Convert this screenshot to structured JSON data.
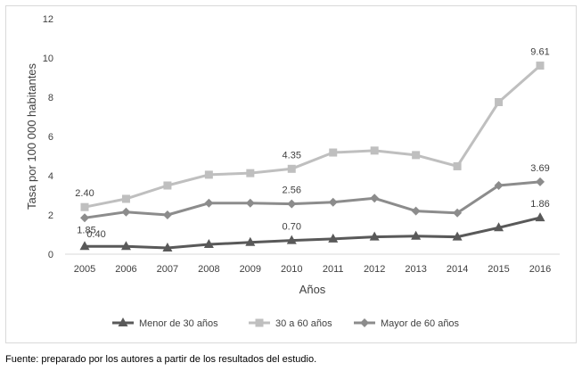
{
  "chart_data": {
    "type": "line",
    "title": "",
    "xlabel": "Años",
    "ylabel": "Tasa por 100 000 habitantes",
    "x": [
      2005,
      2006,
      2007,
      2008,
      2009,
      2010,
      2011,
      2012,
      2013,
      2014,
      2015,
      2016
    ],
    "ylim": [
      0,
      12
    ],
    "yticks": [
      0,
      2,
      4,
      6,
      8,
      10,
      12
    ],
    "grid": false,
    "legend_position": "bottom",
    "series": [
      {
        "name": "Menor de 30 años",
        "color": "#595959",
        "marker": "triangle",
        "values": [
          0.4,
          0.4,
          0.32,
          0.5,
          0.6,
          0.7,
          0.78,
          0.88,
          0.92,
          0.88,
          1.35,
          1.86
        ],
        "data_labels": [
          {
            "index": 0,
            "text": "0.40"
          },
          {
            "index": 5,
            "text": "0.70"
          },
          {
            "index": 11,
            "text": "1.86"
          }
        ]
      },
      {
        "name": "30 a 60 años",
        "color": "#bfbfbf",
        "marker": "square",
        "values": [
          2.4,
          2.82,
          3.5,
          4.05,
          4.13,
          4.35,
          5.18,
          5.28,
          5.05,
          4.48,
          7.75,
          9.61
        ],
        "data_labels": [
          {
            "index": 0,
            "text": "2.40"
          },
          {
            "index": 5,
            "text": "4.35"
          },
          {
            "index": 11,
            "text": "9.61"
          }
        ]
      },
      {
        "name": "Mayor de 60 años",
        "color": "#8c8c8c",
        "marker": "diamond",
        "values": [
          1.85,
          2.15,
          2.0,
          2.6,
          2.6,
          2.56,
          2.65,
          2.85,
          2.2,
          2.1,
          3.5,
          3.69
        ],
        "data_labels": [
          {
            "index": 0,
            "text": "1.85"
          },
          {
            "index": 5,
            "text": "2.56"
          },
          {
            "index": 11,
            "text": "3.69"
          }
        ]
      }
    ]
  },
  "source_note": "Fuente: preparado por los autores a partir de los resultados del estudio."
}
